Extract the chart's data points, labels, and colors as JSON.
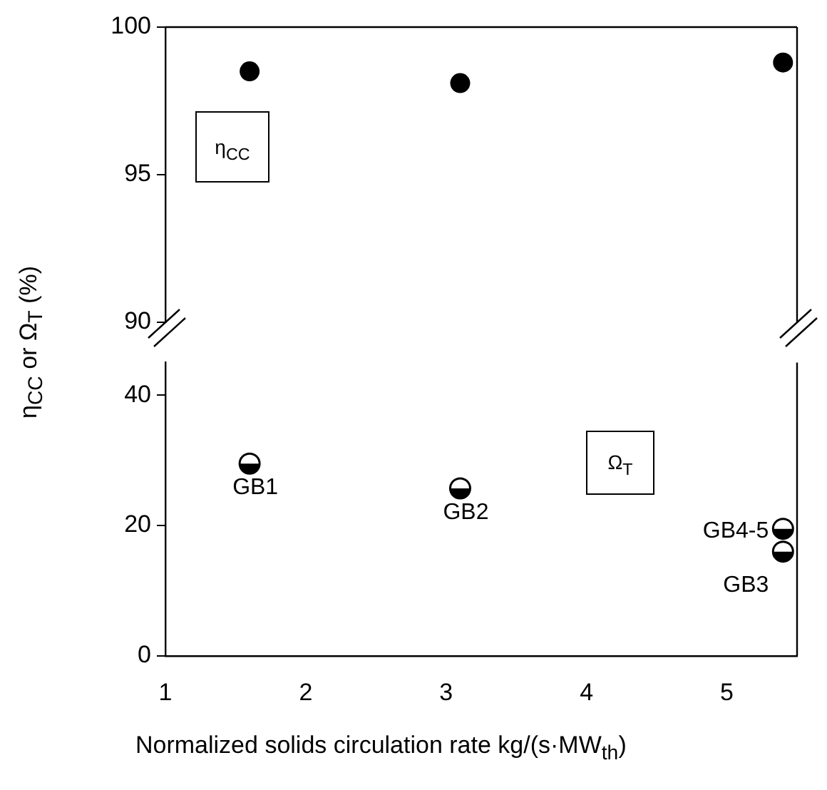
{
  "chart_data": [
    {
      "type": "scatter",
      "x": [
        1.6,
        3.1,
        5.4
      ],
      "xlim": [
        1,
        5.5
      ],
      "ylim": [
        90,
        100
      ],
      "yticks": [
        90,
        95,
        100
      ],
      "tick_labels": "y",
      "marker": "circle",
      "series": [
        {
          "name": "η$_{CC}$",
          "color": "#000000",
          "values": [
            98.5,
            98.1,
            98.8
          ]
        }
      ]
    },
    {
      "type": "scatter",
      "x": [
        1.6,
        3.1,
        5.4,
        5.4
      ],
      "xlim": [
        1,
        5.5
      ],
      "xticks": [
        1,
        2,
        3,
        4,
        5
      ],
      "ylim": [
        0,
        45
      ],
      "yticks": [
        0,
        20,
        40
      ],
      "marker": "circle",
      "xlabel": "Normalized solids circulation rate kg/(s·MW$_{th}$)",
      "ylabel": "η$_{CC}$ or  Ω$_{T}$ (%)",
      "series": [
        {
          "name": "Ω$_{T}$",
          "color": "#000000",
          "values": [
            29.5,
            25.7,
            19.5,
            16.0
          ]
        }
      ],
      "annotations": [
        {
          "text": "GB1",
          "x": 1.6,
          "y": 29.5
        },
        {
          "text": "GB2",
          "x": 3.1,
          "y": 25.7
        },
        {
          "text": "GB4-5",
          "x": 5.4,
          "y": 19.5
        },
        {
          "text": "GB3",
          "x": 5.4,
          "y": 16.0
        }
      ]
    }
  ]
}
